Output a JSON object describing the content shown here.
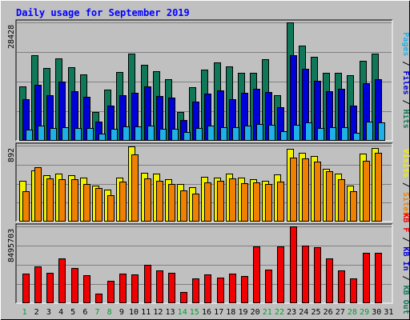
{
  "chart_data": {
    "type": "bar",
    "title": "Daily usage for September 2019",
    "categories": [
      "1",
      "2",
      "3",
      "4",
      "5",
      "6",
      "7",
      "8",
      "9",
      "10",
      "11",
      "12",
      "13",
      "14",
      "15",
      "16",
      "17",
      "18",
      "19",
      "20",
      "21",
      "22",
      "23",
      "24",
      "25",
      "26",
      "27",
      "28",
      "29",
      "30",
      "31"
    ],
    "weekend_days": [
      "1",
      "7",
      "8",
      "14",
      "15",
      "21",
      "22",
      "28",
      "29"
    ],
    "panels": [
      {
        "name": "hits-files-pages",
        "ylim": [
          0,
          28428
        ],
        "y_tick_label": "28428",
        "legend": [
          "Pages",
          "/",
          "Files",
          "/",
          "Hits"
        ],
        "series": [
          {
            "name": "Hits",
            "color": "#107858",
            "values": [
              13100,
              20600,
              17400,
              19800,
              17600,
              16000,
              7000,
              12200,
              16600,
              21000,
              18200,
              16800,
              14800,
              7000,
              12800,
              17000,
              18900,
              17800,
              16400,
              16400,
              19500,
              11000,
              28400,
              22800,
              20100,
              16300,
              16300,
              15700,
              19200,
              21000
            ]
          },
          {
            "name": "Files",
            "color": "#0000d8",
            "values": [
              10000,
              13500,
              11000,
              14300,
              12000,
              10500,
              4600,
              8500,
              11000,
              11500,
              13100,
              10700,
              10400,
              5000,
              9500,
              11300,
              12100,
              9900,
              11600,
              12500,
              11700,
              8100,
              20500,
              17200,
              14500,
              12000,
              12400,
              8500,
              13800,
              14800
            ]
          },
          {
            "name": "Pages",
            "color": "#20b0e8",
            "values": [
              2600,
              3600,
              3000,
              3300,
              3000,
              3100,
              1800,
              2800,
              3400,
              3400,
              3600,
              2900,
              2900,
              2200,
              3100,
              3600,
              3300,
              3200,
              3600,
              4000,
              3800,
              2300,
              3900,
              4500,
              3100,
              3200,
              3200,
              2000,
              4700,
              4500
            ]
          }
        ]
      },
      {
        "name": "visits-sites",
        "ylim": [
          0,
          892
        ],
        "y_tick_label": "892",
        "legend": [
          "Visits",
          "/",
          "Sites"
        ],
        "series": [
          {
            "name": "Visits",
            "color": "#f0f000",
            "values": [
              480,
              600,
              540,
              560,
              540,
              520,
              420,
              380,
              520,
              880,
              570,
              560,
              500,
              440,
              400,
              530,
              520,
              560,
              520,
              500,
              480,
              550,
              850,
              810,
              770,
              620,
              560,
              420,
              800,
              860
            ]
          },
          {
            "name": "Sites",
            "color": "#f08000",
            "values": [
              360,
              640,
              510,
              500,
              500,
              440,
              390,
              310,
              470,
              790,
              510,
              480,
              440,
              370,
              330,
              460,
              480,
              510,
              450,
              460,
              440,
              470,
              750,
              740,
              700,
              590,
              500,
              360,
              710,
              810
            ]
          }
        ]
      },
      {
        "name": "kb-in-out",
        "ylim": [
          0,
          8495703
        ],
        "y_tick_label": "8495703",
        "legend": [
          "KB F",
          "/",
          "KB In",
          "/",
          "KB Out"
        ],
        "series": [
          {
            "name": "KB F",
            "color": "#f00000",
            "values": [
              3310000,
              4060000,
              3360000,
              4930000,
              3900000,
              3060000,
              1060000,
              2470000,
              3260000,
              3160000,
              4270000,
              3660000,
              3330000,
              1230000,
              2720000,
              3160000,
              2800000,
              3300000,
              3000000,
              6300000,
              3700000,
              6260000,
              8495703,
              6400000,
              6200000,
              4960000,
              3600000,
              2700000,
              5560000,
              5600000
            ]
          },
          {
            "name": "KB In",
            "color": "#0000d8",
            "values": []
          },
          {
            "name": "KB Out",
            "color": "#107858",
            "values": []
          }
        ]
      }
    ],
    "grid": true
  }
}
